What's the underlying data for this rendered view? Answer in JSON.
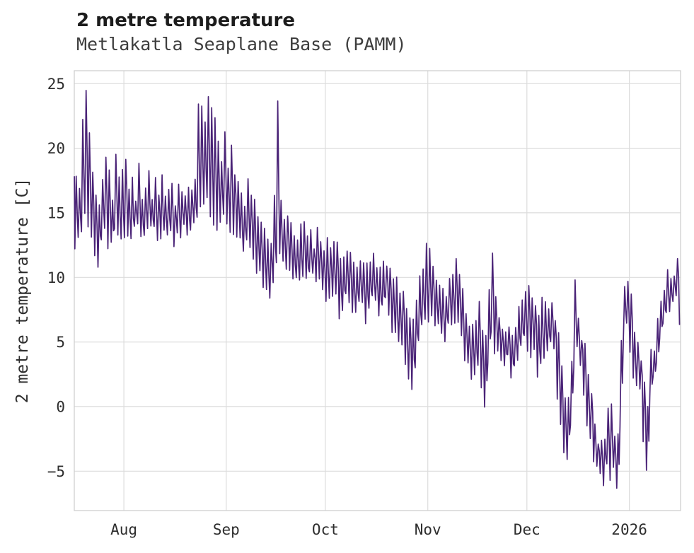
{
  "header": {
    "title": "2 metre temperature",
    "subtitle": "Metlakatla Seaplane Base (PAMM)"
  },
  "chart_data": {
    "type": "line",
    "title": "2 metre temperature",
    "subtitle": "Metlakatla Seaplane Base (PAMM)",
    "series_name": "2 metre temperature",
    "xlabel": "",
    "ylabel": "2 metre temperature [C]",
    "ylim": [
      -8.05,
      26
    ],
    "xlim": [
      0,
      183.5
    ],
    "grid": true,
    "legend": false,
    "line_color": "#4a2377",
    "grid_color": "#dcdcdc",
    "frame_color": "#cfcfcf",
    "tick_color": "#2e2e2e",
    "y_ticks": [
      {
        "value": 25,
        "label": "25"
      },
      {
        "value": 20,
        "label": "20"
      },
      {
        "value": 15,
        "label": "15"
      },
      {
        "value": 10,
        "label": "10"
      },
      {
        "value": 5,
        "label": "5"
      },
      {
        "value": 0,
        "label": "0"
      },
      {
        "value": -5,
        "label": "−5"
      }
    ],
    "x_ticks": [
      {
        "day": 15,
        "label": "Aug"
      },
      {
        "day": 46,
        "label": "Sep"
      },
      {
        "day": 76,
        "label": "Oct"
      },
      {
        "day": 107,
        "label": "Nov"
      },
      {
        "day": 137,
        "label": "Dec"
      },
      {
        "day": 168,
        "label": "2026"
      }
    ],
    "noise": {
      "seed": 11,
      "amplitude": 0.55
    },
    "anchors_format": [
      "day_index_from_chart_start",
      "daily_min_C",
      "daily_max_C"
    ],
    "anchors": [
      [
        0,
        12.2,
        17.8
      ],
      [
        1,
        13,
        16.5
      ],
      [
        2,
        14,
        22.2
      ],
      [
        3,
        15,
        24.5
      ],
      [
        4,
        14,
        21
      ],
      [
        5,
        13.5,
        18.5
      ],
      [
        6,
        11.8,
        16.5
      ],
      [
        7,
        11.2,
        15.5
      ],
      [
        8,
        13,
        17.2
      ],
      [
        9,
        13.5,
        19.5
      ],
      [
        10,
        12.5,
        18.8
      ],
      [
        11,
        12.2,
        16.2
      ],
      [
        12,
        13.5,
        19.7
      ],
      [
        13,
        13.2,
        17.4
      ],
      [
        14,
        12.6,
        18
      ],
      [
        15,
        13.6,
        19.6
      ],
      [
        16,
        13.2,
        16.8
      ],
      [
        17,
        13,
        17.5
      ],
      [
        18,
        13.8,
        16.4
      ],
      [
        19,
        14,
        18.3
      ],
      [
        20,
        13.2,
        16.2
      ],
      [
        21,
        13,
        17
      ],
      [
        22,
        14,
        18.2
      ],
      [
        23,
        13.6,
        16.4
      ],
      [
        24,
        13.8,
        17.6
      ],
      [
        25,
        13,
        16.5
      ],
      [
        26,
        12.6,
        17.8
      ],
      [
        27,
        13.2,
        16.2
      ],
      [
        28,
        13.5,
        16.8
      ],
      [
        29,
        13.2,
        17.5
      ],
      [
        30,
        12.8,
        16
      ],
      [
        31,
        13.4,
        17.2
      ],
      [
        32,
        13,
        16.5
      ],
      [
        33,
        13.6,
        16.2
      ],
      [
        34,
        13.2,
        17
      ],
      [
        35,
        13.5,
        16.6
      ],
      [
        36,
        14,
        18
      ],
      [
        37,
        14.5,
        22.9
      ],
      [
        38,
        15,
        23.4
      ],
      [
        39,
        15.5,
        22.5
      ],
      [
        40,
        16,
        24
      ],
      [
        41,
        15,
        22.9
      ],
      [
        42,
        14.5,
        22.3
      ],
      [
        43,
        14,
        20.2
      ],
      [
        44,
        14,
        19.5
      ],
      [
        45,
        14.5,
        21.2
      ],
      [
        46,
        14,
        19
      ],
      [
        47,
        13.5,
        20.6
      ],
      [
        48,
        13.8,
        18.4
      ],
      [
        49,
        13,
        17.2
      ],
      [
        50,
        12.6,
        16
      ],
      [
        51,
        12.4,
        15.4
      ],
      [
        52,
        13,
        17.6
      ],
      [
        53,
        12.8,
        16.4
      ],
      [
        54,
        11.5,
        15.8
      ],
      [
        55,
        10.5,
        14.6
      ],
      [
        56,
        10,
        14.5
      ],
      [
        57,
        9.5,
        13.6
      ],
      [
        58,
        9,
        12.8
      ],
      [
        59,
        8.8,
        13
      ],
      [
        60,
        10,
        16
      ],
      [
        61,
        11,
        23.3
      ],
      [
        62,
        11.5,
        16.4
      ],
      [
        63,
        11,
        14.8
      ],
      [
        64,
        10.8,
        15.2
      ],
      [
        65,
        10.4,
        14
      ],
      [
        66,
        9.6,
        13
      ],
      [
        67,
        9.7,
        13.2
      ],
      [
        68,
        10.2,
        14
      ],
      [
        69,
        10,
        13.8
      ],
      [
        70,
        9.9,
        12.8
      ],
      [
        71,
        10.4,
        13.4
      ],
      [
        72,
        9.8,
        12.6
      ],
      [
        73,
        9.7,
        13.4
      ],
      [
        74,
        10,
        12.8
      ],
      [
        75,
        9.5,
        12.4
      ],
      [
        76,
        8.6,
        12.6
      ],
      [
        77,
        8.3,
        12.6
      ],
      [
        78,
        9,
        12.4
      ],
      [
        79,
        9.2,
        12.8
      ],
      [
        80,
        7.2,
        11.6
      ],
      [
        81,
        7,
        11.5
      ],
      [
        82,
        8.2,
        12.2
      ],
      [
        83,
        8,
        12.2
      ],
      [
        84,
        6.8,
        11.4
      ],
      [
        85,
        7.4,
        11.2
      ],
      [
        86,
        8,
        11.8
      ],
      [
        87,
        7.8,
        11.5
      ],
      [
        88,
        6.5,
        10.8
      ],
      [
        89,
        7.5,
        11
      ],
      [
        90,
        8.3,
        11.4
      ],
      [
        91,
        8,
        11.2
      ],
      [
        92,
        7,
        10.6
      ],
      [
        93,
        7.4,
        10.8
      ],
      [
        94,
        8,
        11
      ],
      [
        95,
        7,
        10.4
      ],
      [
        96,
        5.8,
        10.2
      ],
      [
        97,
        5.5,
        9.8
      ],
      [
        98,
        4.8,
        9.2
      ],
      [
        99,
        4.5,
        9
      ],
      [
        100,
        3,
        8
      ],
      [
        101,
        2.5,
        7.4
      ],
      [
        102,
        1.6,
        6.6
      ],
      [
        103,
        3.2,
        8
      ],
      [
        104,
        5,
        9.6
      ],
      [
        105,
        6,
        10.6
      ],
      [
        106,
        7,
        12.2
      ],
      [
        107,
        6.5,
        12.3
      ],
      [
        108,
        7,
        11.2
      ],
      [
        109,
        6.5,
        10
      ],
      [
        110,
        6,
        9.5
      ],
      [
        111,
        5.6,
        9.2
      ],
      [
        112,
        5.5,
        9
      ],
      [
        113,
        6,
        10
      ],
      [
        114,
        6.5,
        10.4
      ],
      [
        115,
        7,
        11.6
      ],
      [
        116,
        6.2,
        10
      ],
      [
        117,
        5,
        9
      ],
      [
        118,
        4,
        7.6
      ],
      [
        119,
        3,
        6.6
      ],
      [
        120,
        2.6,
        6
      ],
      [
        121,
        3,
        6.8
      ],
      [
        122,
        3.5,
        7.8
      ],
      [
        123,
        2,
        6.4
      ],
      [
        124,
        0.1,
        5.5
      ],
      [
        125,
        3,
        8.6
      ],
      [
        126,
        6,
        12.3
      ],
      [
        127,
        4.6,
        8.6
      ],
      [
        128,
        4,
        7
      ],
      [
        129,
        3.6,
        6.2
      ],
      [
        130,
        3,
        5.6
      ],
      [
        131,
        3.8,
        6.2
      ],
      [
        132,
        2.3,
        5
      ],
      [
        133,
        3,
        6.6
      ],
      [
        134,
        4,
        7.6
      ],
      [
        135,
        4.4,
        8
      ],
      [
        136,
        5,
        9
      ],
      [
        137,
        4.6,
        9.9
      ],
      [
        138,
        4.2,
        8.4
      ],
      [
        139,
        4,
        8.2
      ],
      [
        140,
        2.4,
        7
      ],
      [
        141,
        3.5,
        8.9
      ],
      [
        142,
        4,
        8.6
      ],
      [
        143,
        4.2,
        7.6
      ],
      [
        144,
        5,
        7.9
      ],
      [
        145,
        4,
        7
      ],
      [
        146,
        1,
        5.5
      ],
      [
        147,
        -1,
        3
      ],
      [
        148,
        -3.2,
        0.5
      ],
      [
        149,
        -3.8,
        1
      ],
      [
        150,
        -1,
        4
      ],
      [
        151,
        3,
        10
      ],
      [
        152,
        4.4,
        6.6
      ],
      [
        153,
        3,
        5.2
      ],
      [
        154,
        1,
        4.6
      ],
      [
        155,
        -1.2,
        2
      ],
      [
        156,
        -2,
        0.6
      ],
      [
        157,
        -4,
        -0.8
      ],
      [
        158,
        -4.6,
        -2.4
      ],
      [
        159,
        -5.4,
        -2.8
      ],
      [
        160,
        -5.8,
        -3
      ],
      [
        161,
        -4.6,
        0.3
      ],
      [
        162,
        -5.5,
        0.2
      ],
      [
        163,
        -5.2,
        -1.8
      ],
      [
        164,
        -6.2,
        -2.6
      ],
      [
        165,
        -1.5,
        5.5
      ],
      [
        166,
        5,
        9.4
      ],
      [
        167,
        6.5,
        9.2
      ],
      [
        168,
        4.5,
        8.6
      ],
      [
        169,
        2.4,
        6
      ],
      [
        170,
        1.8,
        4.6
      ],
      [
        171,
        1.6,
        3.6
      ],
      [
        172,
        -2.6,
        2
      ],
      [
        173,
        -4.5,
        0.2
      ],
      [
        174,
        0.2,
        4.8
      ],
      [
        175,
        2.2,
        4.6
      ],
      [
        176,
        3,
        6.6
      ],
      [
        177,
        5,
        8.7
      ],
      [
        178,
        6.8,
        9.5
      ],
      [
        179,
        6.8,
        10.2
      ],
      [
        180,
        7.2,
        9.8
      ],
      [
        181,
        8.4,
        10.6
      ],
      [
        182,
        9,
        11.7
      ],
      [
        183,
        6.6,
        9.6
      ]
    ]
  }
}
